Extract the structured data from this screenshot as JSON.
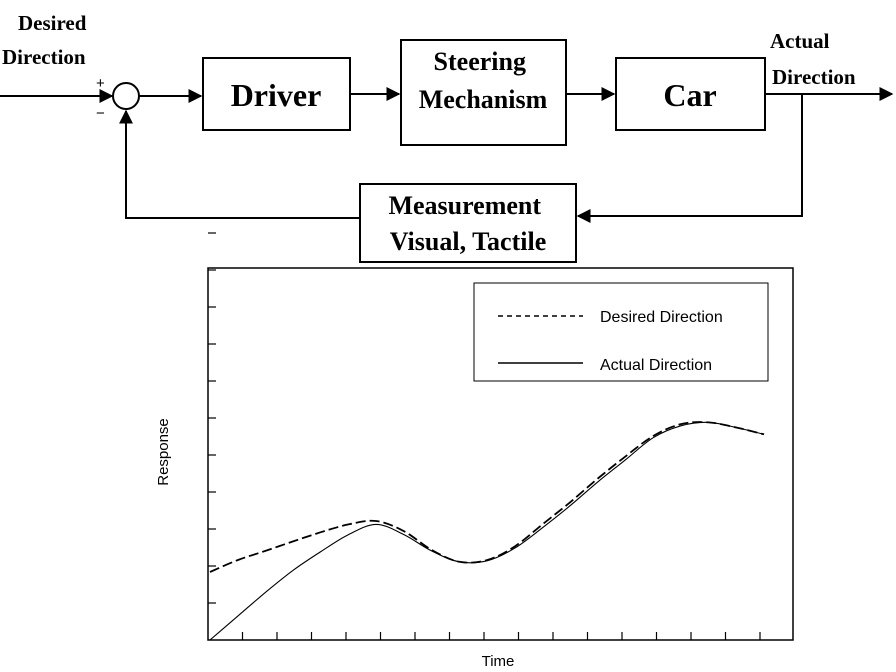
{
  "block_diagram": {
    "input_label": [
      "Desired",
      "Direction"
    ],
    "output_label": [
      "Actual",
      "Direction"
    ],
    "plus_sign": "+",
    "minus_sign": "−",
    "blocks": {
      "driver": [
        "Driver"
      ],
      "steering": [
        "Steering",
        "Mechanism"
      ],
      "car": [
        "Car"
      ],
      "measurement": [
        "Measurement",
        "Visual, Tactile"
      ]
    }
  },
  "chart_data": {
    "type": "line",
    "xlabel": "Time",
    "ylabel": "Response",
    "xlim": [
      0,
      1
    ],
    "ylim": [
      0,
      1
    ],
    "grid": false,
    "legend_position": "top-right",
    "series": [
      {
        "name": "Desired Direction",
        "style": "dashed",
        "x": [
          0,
          0.05,
          0.1,
          0.15,
          0.2,
          0.25,
          0.3,
          0.35,
          0.4,
          0.45,
          0.5,
          0.55,
          0.6,
          0.65,
          0.7,
          0.75,
          0.8,
          0.85,
          0.9,
          0.95,
          1.0
        ],
        "y": [
          0.2,
          0.235,
          0.262,
          0.29,
          0.317,
          0.34,
          0.35,
          0.32,
          0.265,
          0.23,
          0.235,
          0.275,
          0.34,
          0.405,
          0.475,
          0.54,
          0.6,
          0.635,
          0.64,
          0.625,
          0.605
        ]
      },
      {
        "name": "Actual Direction",
        "style": "solid",
        "x": [
          0,
          0.05,
          0.1,
          0.15,
          0.2,
          0.25,
          0.3,
          0.35,
          0.4,
          0.45,
          0.5,
          0.55,
          0.6,
          0.65,
          0.7,
          0.75,
          0.8,
          0.85,
          0.9,
          0.95,
          1.0
        ],
        "y": [
          0.0,
          0.07,
          0.14,
          0.205,
          0.26,
          0.31,
          0.34,
          0.31,
          0.262,
          0.23,
          0.233,
          0.27,
          0.33,
          0.395,
          0.465,
          0.53,
          0.595,
          0.63,
          0.64,
          0.625,
          0.605
        ]
      }
    ]
  }
}
